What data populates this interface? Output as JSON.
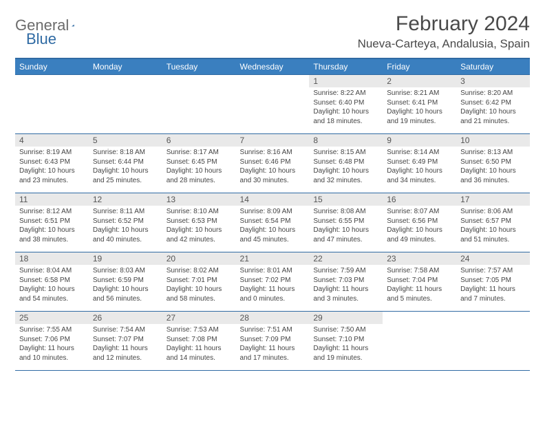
{
  "logo": {
    "text1": "General",
    "text2": "Blue"
  },
  "title": "February 2024",
  "location": "Nueva-Carteya, Andalusia, Spain",
  "colors": {
    "header_bg": "#3a7fbf",
    "header_border": "#2f6aa3",
    "daynum_bg": "#e9e9e9",
    "text": "#444444",
    "logo_blue": "#2f6aa3"
  },
  "weekdays": [
    "Sunday",
    "Monday",
    "Tuesday",
    "Wednesday",
    "Thursday",
    "Friday",
    "Saturday"
  ],
  "weeks": [
    [
      {
        "empty": true
      },
      {
        "empty": true
      },
      {
        "empty": true
      },
      {
        "empty": true
      },
      {
        "num": "1",
        "sunrise": "Sunrise: 8:22 AM",
        "sunset": "Sunset: 6:40 PM",
        "daylight": "Daylight: 10 hours and 18 minutes."
      },
      {
        "num": "2",
        "sunrise": "Sunrise: 8:21 AM",
        "sunset": "Sunset: 6:41 PM",
        "daylight": "Daylight: 10 hours and 19 minutes."
      },
      {
        "num": "3",
        "sunrise": "Sunrise: 8:20 AM",
        "sunset": "Sunset: 6:42 PM",
        "daylight": "Daylight: 10 hours and 21 minutes."
      }
    ],
    [
      {
        "num": "4",
        "sunrise": "Sunrise: 8:19 AM",
        "sunset": "Sunset: 6:43 PM",
        "daylight": "Daylight: 10 hours and 23 minutes."
      },
      {
        "num": "5",
        "sunrise": "Sunrise: 8:18 AM",
        "sunset": "Sunset: 6:44 PM",
        "daylight": "Daylight: 10 hours and 25 minutes."
      },
      {
        "num": "6",
        "sunrise": "Sunrise: 8:17 AM",
        "sunset": "Sunset: 6:45 PM",
        "daylight": "Daylight: 10 hours and 28 minutes."
      },
      {
        "num": "7",
        "sunrise": "Sunrise: 8:16 AM",
        "sunset": "Sunset: 6:46 PM",
        "daylight": "Daylight: 10 hours and 30 minutes."
      },
      {
        "num": "8",
        "sunrise": "Sunrise: 8:15 AM",
        "sunset": "Sunset: 6:48 PM",
        "daylight": "Daylight: 10 hours and 32 minutes."
      },
      {
        "num": "9",
        "sunrise": "Sunrise: 8:14 AM",
        "sunset": "Sunset: 6:49 PM",
        "daylight": "Daylight: 10 hours and 34 minutes."
      },
      {
        "num": "10",
        "sunrise": "Sunrise: 8:13 AM",
        "sunset": "Sunset: 6:50 PM",
        "daylight": "Daylight: 10 hours and 36 minutes."
      }
    ],
    [
      {
        "num": "11",
        "sunrise": "Sunrise: 8:12 AM",
        "sunset": "Sunset: 6:51 PM",
        "daylight": "Daylight: 10 hours and 38 minutes."
      },
      {
        "num": "12",
        "sunrise": "Sunrise: 8:11 AM",
        "sunset": "Sunset: 6:52 PM",
        "daylight": "Daylight: 10 hours and 40 minutes."
      },
      {
        "num": "13",
        "sunrise": "Sunrise: 8:10 AM",
        "sunset": "Sunset: 6:53 PM",
        "daylight": "Daylight: 10 hours and 42 minutes."
      },
      {
        "num": "14",
        "sunrise": "Sunrise: 8:09 AM",
        "sunset": "Sunset: 6:54 PM",
        "daylight": "Daylight: 10 hours and 45 minutes."
      },
      {
        "num": "15",
        "sunrise": "Sunrise: 8:08 AM",
        "sunset": "Sunset: 6:55 PM",
        "daylight": "Daylight: 10 hours and 47 minutes."
      },
      {
        "num": "16",
        "sunrise": "Sunrise: 8:07 AM",
        "sunset": "Sunset: 6:56 PM",
        "daylight": "Daylight: 10 hours and 49 minutes."
      },
      {
        "num": "17",
        "sunrise": "Sunrise: 8:06 AM",
        "sunset": "Sunset: 6:57 PM",
        "daylight": "Daylight: 10 hours and 51 minutes."
      }
    ],
    [
      {
        "num": "18",
        "sunrise": "Sunrise: 8:04 AM",
        "sunset": "Sunset: 6:58 PM",
        "daylight": "Daylight: 10 hours and 54 minutes."
      },
      {
        "num": "19",
        "sunrise": "Sunrise: 8:03 AM",
        "sunset": "Sunset: 6:59 PM",
        "daylight": "Daylight: 10 hours and 56 minutes."
      },
      {
        "num": "20",
        "sunrise": "Sunrise: 8:02 AM",
        "sunset": "Sunset: 7:01 PM",
        "daylight": "Daylight: 10 hours and 58 minutes."
      },
      {
        "num": "21",
        "sunrise": "Sunrise: 8:01 AM",
        "sunset": "Sunset: 7:02 PM",
        "daylight": "Daylight: 11 hours and 0 minutes."
      },
      {
        "num": "22",
        "sunrise": "Sunrise: 7:59 AM",
        "sunset": "Sunset: 7:03 PM",
        "daylight": "Daylight: 11 hours and 3 minutes."
      },
      {
        "num": "23",
        "sunrise": "Sunrise: 7:58 AM",
        "sunset": "Sunset: 7:04 PM",
        "daylight": "Daylight: 11 hours and 5 minutes."
      },
      {
        "num": "24",
        "sunrise": "Sunrise: 7:57 AM",
        "sunset": "Sunset: 7:05 PM",
        "daylight": "Daylight: 11 hours and 7 minutes."
      }
    ],
    [
      {
        "num": "25",
        "sunrise": "Sunrise: 7:55 AM",
        "sunset": "Sunset: 7:06 PM",
        "daylight": "Daylight: 11 hours and 10 minutes."
      },
      {
        "num": "26",
        "sunrise": "Sunrise: 7:54 AM",
        "sunset": "Sunset: 7:07 PM",
        "daylight": "Daylight: 11 hours and 12 minutes."
      },
      {
        "num": "27",
        "sunrise": "Sunrise: 7:53 AM",
        "sunset": "Sunset: 7:08 PM",
        "daylight": "Daylight: 11 hours and 14 minutes."
      },
      {
        "num": "28",
        "sunrise": "Sunrise: 7:51 AM",
        "sunset": "Sunset: 7:09 PM",
        "daylight": "Daylight: 11 hours and 17 minutes."
      },
      {
        "num": "29",
        "sunrise": "Sunrise: 7:50 AM",
        "sunset": "Sunset: 7:10 PM",
        "daylight": "Daylight: 11 hours and 19 minutes."
      },
      {
        "empty": true
      },
      {
        "empty": true
      }
    ]
  ]
}
